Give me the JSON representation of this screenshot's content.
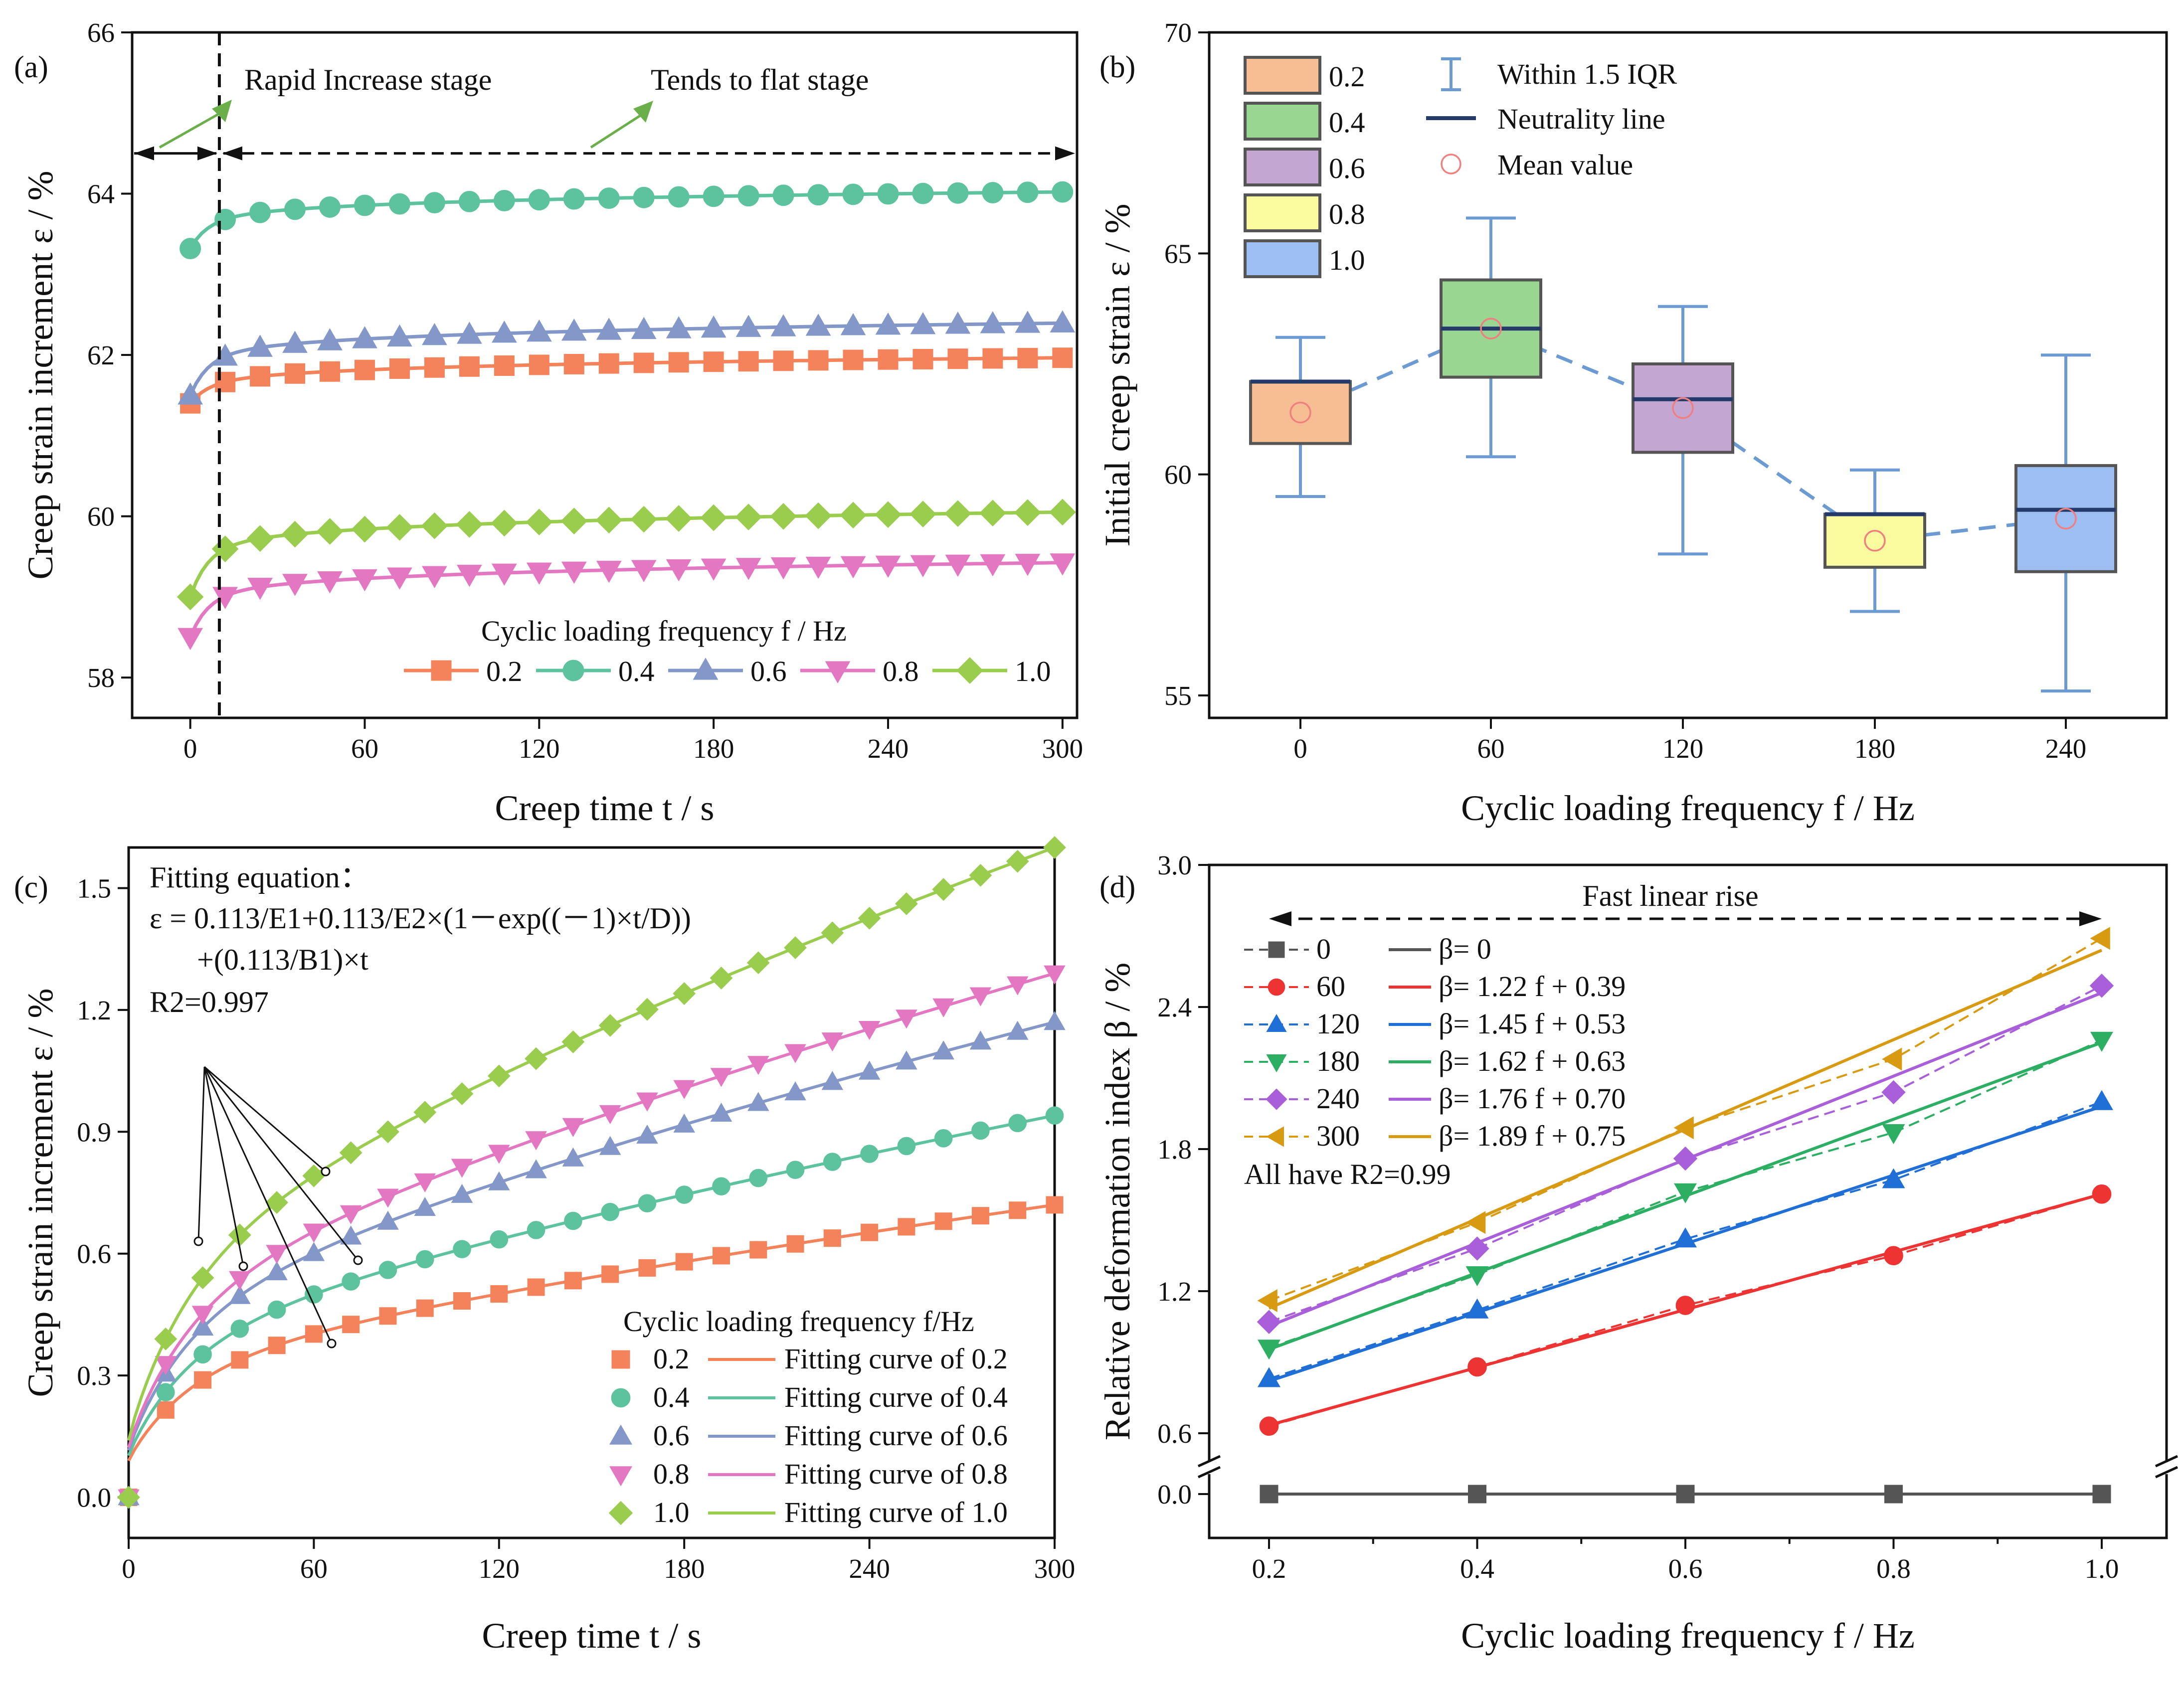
{
  "chart_data": [
    {
      "panel": "(a)",
      "type": "line",
      "xlabel": "Creep time t / s",
      "ylabel": "Creep strain increment ε / %",
      "xticks": [
        0,
        60,
        120,
        180,
        240,
        300
      ],
      "yticks": [
        58,
        60,
        62,
        64,
        66
      ],
      "xlim": [
        -20,
        305
      ],
      "ylim": [
        57.5,
        66
      ],
      "legend_title": "Cyclic loading frequency f / Hz",
      "annotations": {
        "rapid": "Rapid Increase stage",
        "flat": "Tends to flat stage"
      },
      "divider_t": 10,
      "series": [
        {
          "name": "0.2",
          "color": "#F4825A",
          "marker": "square",
          "start": 61.4,
          "a": 0.2,
          "b": 0.1
        },
        {
          "name": "0.4",
          "color": "#5CC39E",
          "marker": "circle",
          "start": 63.32,
          "a": 0.3,
          "b": 0.11
        },
        {
          "name": "0.6",
          "color": "#8497C9",
          "marker": "triangle-up",
          "start": 61.5,
          "a": 0.42,
          "b": 0.13
        },
        {
          "name": "0.8",
          "color": "#E377C2",
          "marker": "triangle-down",
          "start": 58.5,
          "a": 0.45,
          "b": 0.13
        },
        {
          "name": "1.0",
          "color": "#9ACD4E",
          "marker": "diamond",
          "start": 59.0,
          "a": 0.54,
          "b": 0.14
        }
      ],
      "t_points": [
        0,
        12,
        24,
        36,
        48,
        60,
        72,
        84,
        96,
        108,
        120,
        132,
        144,
        156,
        168,
        180,
        192,
        204,
        216,
        228,
        240,
        252,
        264,
        276,
        288,
        300
      ]
    },
    {
      "panel": "(b)",
      "type": "box",
      "xlabel": "Cyclic loading frequency f  / Hz",
      "ylabel": "Initial creep strain ε / %",
      "categories": [
        "0",
        "60",
        "120",
        "180",
        "240"
      ],
      "yticks": [
        55,
        60,
        65,
        70
      ],
      "ylim": [
        55,
        70
      ],
      "legend_extra": {
        "whisker": "Within 1.5 IQR",
        "median": "Neutrality line",
        "mean": "Mean value"
      },
      "boxes": [
        {
          "name": "0.2",
          "color": "#F8BE93",
          "min": 59.5,
          "q1": 60.7,
          "median": 62.1,
          "q3": 62.1,
          "max": 63.1,
          "mean": 61.4
        },
        {
          "name": "0.4",
          "color": "#98D692",
          "min": 60.4,
          "q1": 62.2,
          "median": 63.3,
          "q3": 64.4,
          "max": 65.8,
          "mean": 63.3
        },
        {
          "name": "0.6",
          "color": "#C3A6D2",
          "min": 58.2,
          "q1": 60.5,
          "median": 61.7,
          "q3": 62.5,
          "max": 63.8,
          "mean": 61.5
        },
        {
          "name": "0.8",
          "color": "#FAFA9E",
          "min": 56.9,
          "q1": 57.9,
          "median": 59.1,
          "q3": 59.1,
          "max": 60.1,
          "mean": 58.5
        },
        {
          "name": "1.0",
          "color": "#9DBEF2",
          "min": 55.1,
          "q1": 57.8,
          "median": 59.2,
          "q3": 60.2,
          "max": 62.7,
          "mean": 59.0
        }
      ]
    },
    {
      "panel": "(c)",
      "type": "scatter",
      "xlabel": "Creep time t / s",
      "ylabel": "Creep strain increment ε / %",
      "xticks": [
        0,
        60,
        120,
        180,
        240,
        300
      ],
      "yticks": [
        0.0,
        0.3,
        0.6,
        0.9,
        1.2,
        1.5
      ],
      "xlim": [
        0,
        300
      ],
      "ylim": [
        -0.1,
        1.6
      ],
      "equation": {
        "title": "Fitting equation：",
        "line1": "ε = 0.113/E1+0.113/E2×(1－exp((－1)×t/D))",
        "line2": "+(0.113/B1)×t",
        "r2": "R2=0.997"
      },
      "legend_title": "Cyclic loading frequency f/Hz",
      "t_points": [
        0,
        12,
        24,
        36,
        48,
        60,
        72,
        84,
        96,
        108,
        120,
        132,
        144,
        156,
        168,
        180,
        192,
        204,
        216,
        228,
        240,
        252,
        264,
        276,
        288,
        300
      ],
      "series": [
        {
          "name": "0.2",
          "fit_name": "Fitting curve of 0.2",
          "color": "#F4825A",
          "marker": "square",
          "end": 0.72
        },
        {
          "name": "0.4",
          "fit_name": "Fitting curve of 0.4",
          "color": "#5CC39E",
          "marker": "circle",
          "end": 0.94
        },
        {
          "name": "0.6",
          "fit_name": "Fitting curve of 0.6",
          "color": "#8497C9",
          "marker": "triangle-up",
          "end": 1.17
        },
        {
          "name": "0.8",
          "fit_name": "Fitting curve of 0.8",
          "color": "#E377C2",
          "marker": "triangle-down",
          "end": 1.29
        },
        {
          "name": "1.0",
          "fit_name": "Fitting curve of 1.0",
          "color": "#9ACD4E",
          "marker": "diamond",
          "end": 1.6
        }
      ]
    },
    {
      "panel": "(d)",
      "type": "line",
      "xlabel": "Cyclic loading frequency f  / Hz",
      "ylabel": "Relative deformation index β / %",
      "xticks": [
        0.2,
        0.4,
        0.6,
        0.8,
        1.0
      ],
      "yticks": [
        0.0,
        0.6,
        1.2,
        1.8,
        2.4,
        3.0
      ],
      "ylim_upper": [
        0.6,
        3.0
      ],
      "ylim_lower": [
        -0.3,
        0.4
      ],
      "x": [
        0.2,
        0.4,
        0.6,
        0.8,
        1.0
      ],
      "annotation": "Fast linear rise",
      "note": "All have R2=0.99",
      "series": [
        {
          "name": "0",
          "fit_label": "β= 0",
          "color": "#555555",
          "marker": "square",
          "values": [
            0,
            0,
            0,
            0,
            0
          ],
          "slope": 0,
          "intercept": 0
        },
        {
          "name": "60",
          "fit_label": "β= 1.22 f + 0.39",
          "color": "#EE3333",
          "marker": "circle",
          "values": [
            0.63,
            0.88,
            1.14,
            1.35,
            1.61
          ],
          "slope": 1.22,
          "intercept": 0.39
        },
        {
          "name": "120",
          "fit_label": "β= 1.45 f + 0.53",
          "color": "#1F6FD6",
          "marker": "triangle-up",
          "values": [
            0.83,
            1.12,
            1.42,
            1.67,
            2.0
          ],
          "slope": 1.45,
          "intercept": 0.53
        },
        {
          "name": "180",
          "fit_label": "β= 1.62 f + 0.63",
          "color": "#2CAE63",
          "marker": "triangle-down",
          "values": [
            0.96,
            1.27,
            1.62,
            1.87,
            2.26
          ],
          "slope": 1.62,
          "intercept": 0.63
        },
        {
          "name": "240",
          "fit_label": "β= 1.76 f + 0.70",
          "color": "#A85FD9",
          "marker": "diamond",
          "values": [
            1.07,
            1.38,
            1.76,
            2.04,
            2.49
          ],
          "slope": 1.76,
          "intercept": 0.7
        },
        {
          "name": "300",
          "fit_label": "β= 1.89 f + 0.75",
          "color": "#D89A10",
          "marker": "triangle-left",
          "values": [
            1.16,
            1.49,
            1.89,
            2.18,
            2.69
          ],
          "slope": 1.89,
          "intercept": 0.75
        }
      ]
    }
  ]
}
